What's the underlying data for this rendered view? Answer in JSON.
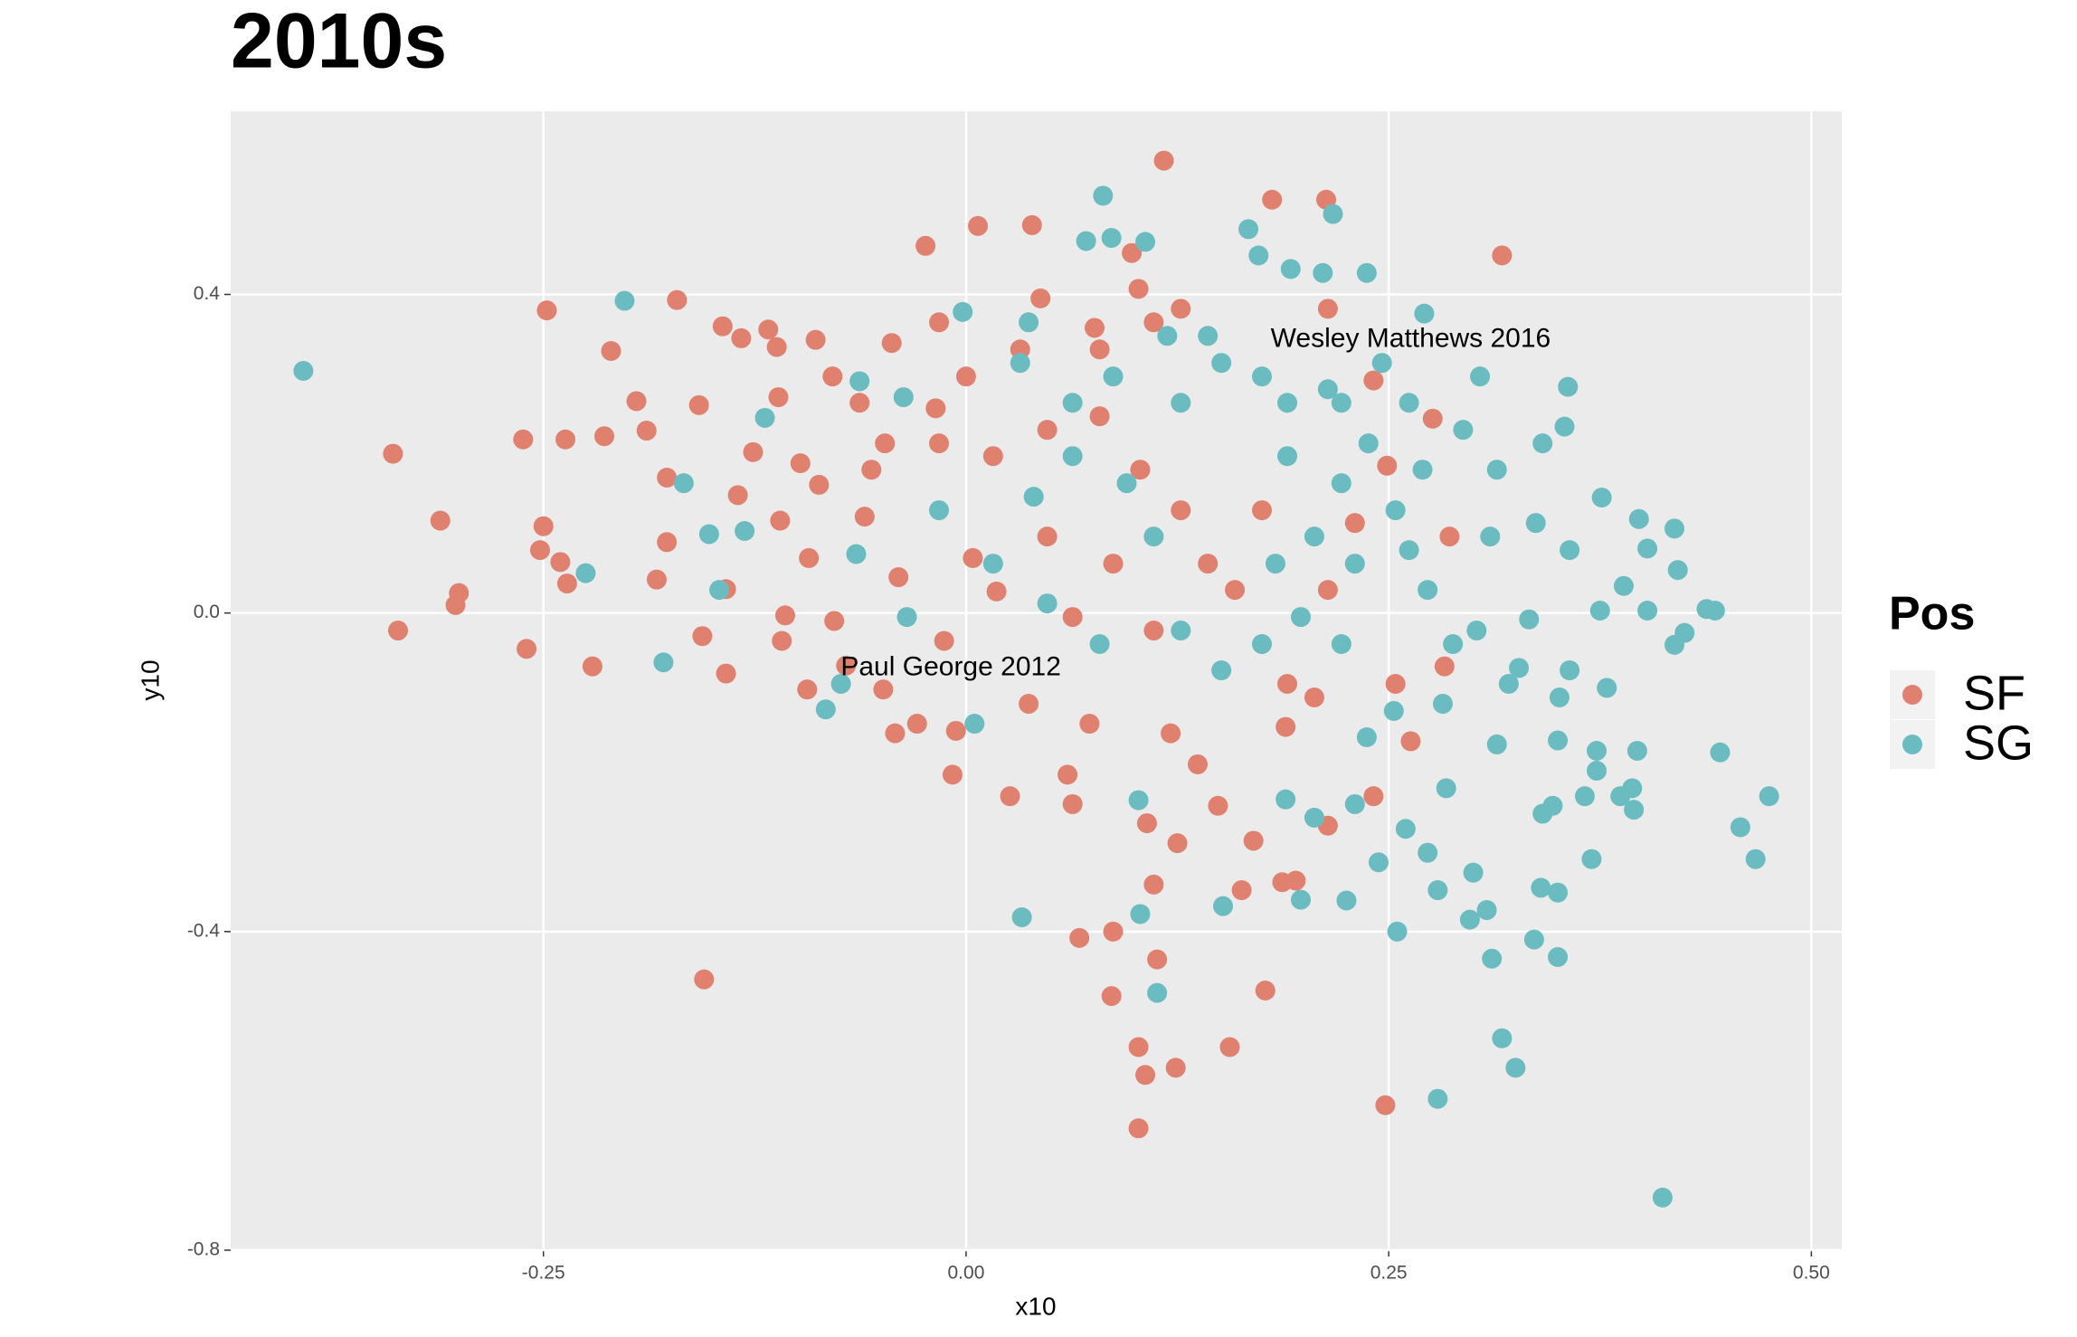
{
  "chart_data": {
    "type": "scatter",
    "title": "2010s",
    "x_label": "x10",
    "y_label": "y10",
    "xlim": [
      -0.435,
      0.518
    ],
    "ylim": [
      -0.8,
      0.63
    ],
    "xticks": [
      -0.25,
      {
        "value": 0,
        "label": "0.00"
      },
      0.25,
      {
        "value": 0.5,
        "label": "0.50"
      }
    ],
    "yticks": [
      -0.8,
      -0.4,
      {
        "value": 0,
        "label": "0.0"
      },
      0.4
    ],
    "grid": true,
    "legend_title": "Pos",
    "legend_position": "right",
    "annotations": [
      {
        "text": "Wesley Matthews 2016",
        "x": 0.263,
        "y": 0.343
      },
      {
        "text": "Paul George 2012",
        "x": -0.009,
        "y": -0.069
      }
    ],
    "series": [
      {
        "name": "SF",
        "color": "#e08170",
        "x": [
          -0.339,
          -0.336,
          -0.311,
          -0.3,
          -0.302,
          -0.262,
          -0.26,
          -0.25,
          -0.248,
          -0.252,
          -0.237,
          -0.236,
          -0.24,
          -0.221,
          -0.21,
          -0.214,
          -0.195,
          -0.189,
          -0.183,
          -0.177,
          -0.171,
          -0.177,
          -0.156,
          -0.155,
          -0.158,
          -0.142,
          -0.142,
          -0.144,
          -0.135,
          -0.133,
          -0.126,
          -0.117,
          -0.112,
          -0.111,
          -0.11,
          -0.107,
          -0.109,
          -0.098,
          -0.094,
          -0.089,
          -0.093,
          -0.087,
          -0.078,
          -0.071,
          -0.06,
          -0.049,
          -0.042,
          -0.044,
          -0.04,
          -0.029,
          -0.024,
          -0.018,
          -0.013,
          -0.008,
          -0.006,
          0.007,
          0.004,
          0.018,
          0.026,
          0.037,
          0.039,
          0.044,
          0.06,
          0.063,
          0.067,
          0.073,
          0.076,
          0.087,
          0.086,
          0.098,
          0.102,
          0.102,
          0.102,
          0.106,
          0.107,
          0.111,
          0.113,
          0.117,
          0.121,
          0.124,
          0.125,
          0.137,
          0.149,
          0.156,
          0.163,
          0.17,
          0.177,
          0.181,
          0.187,
          0.195,
          0.189,
          0.213,
          0.214,
          0.241,
          0.248,
          0.263,
          0.317,
          0.249,
          0.241,
          0.276,
          0.286,
          0.283,
          -0.063,
          -0.048,
          -0.016,
          0.016,
          0.048,
          0.079,
          0.103,
          0.127,
          0.143,
          0.087,
          0.048,
          0.032,
          0.079,
          0.111,
          0.127,
          -0.016,
          -0.079,
          -0.056,
          0.0,
          0.063,
          0.111,
          0.159,
          0.175,
          0.214,
          0.23,
          0.19,
          0.206,
          0.254,
          0.214
        ],
        "values": [
          0.2,
          -0.022,
          0.116,
          0.025,
          0.01,
          0.218,
          -0.045,
          0.109,
          0.38,
          0.079,
          0.218,
          0.037,
          0.064,
          -0.067,
          0.329,
          0.222,
          0.266,
          0.229,
          0.042,
          0.089,
          0.393,
          0.17,
          -0.029,
          -0.46,
          0.261,
          0.03,
          -0.076,
          0.36,
          0.148,
          0.345,
          0.202,
          0.356,
          0.334,
          0.271,
          0.116,
          -0.003,
          -0.035,
          0.188,
          -0.096,
          0.343,
          0.069,
          0.161,
          -0.01,
          -0.066,
          0.121,
          -0.096,
          -0.151,
          0.339,
          0.045,
          -0.139,
          0.461,
          0.257,
          -0.035,
          -0.203,
          -0.148,
          0.486,
          0.069,
          0.027,
          -0.23,
          -0.114,
          0.487,
          0.395,
          -0.203,
          -0.24,
          -0.408,
          -0.139,
          0.358,
          -0.4,
          -0.481,
          0.452,
          0.407,
          -0.545,
          -0.647,
          -0.58,
          -0.264,
          -0.341,
          -0.435,
          0.568,
          -0.151,
          -0.571,
          -0.289,
          -0.19,
          -0.242,
          -0.545,
          -0.348,
          -0.286,
          -0.474,
          0.519,
          -0.338,
          -0.336,
          -0.143,
          0.519,
          -0.267,
          -0.23,
          -0.618,
          -0.161,
          0.449,
          0.185,
          0.292,
          0.244,
          0.096,
          -0.067,
          0.264,
          0.213,
          0.213,
          0.197,
          0.23,
          0.247,
          0.18,
          0.129,
          0.062,
          0.062,
          0.096,
          0.331,
          0.331,
          0.365,
          0.382,
          0.365,
          0.297,
          0.18,
          0.297,
          -0.005,
          -0.022,
          0.029,
          0.129,
          0.029,
          0.113,
          -0.089,
          -0.106,
          -0.089,
          0.382
        ]
      },
      {
        "name": "SG",
        "color": "#6bbcc1",
        "x": [
          -0.392,
          -0.202,
          -0.225,
          -0.179,
          -0.167,
          -0.152,
          -0.146,
          -0.131,
          -0.119,
          -0.083,
          -0.074,
          -0.065,
          -0.063,
          -0.035,
          -0.037,
          -0.002,
          0.005,
          0.033,
          0.037,
          0.081,
          0.071,
          0.086,
          0.106,
          0.102,
          0.103,
          0.113,
          0.152,
          0.167,
          0.173,
          0.192,
          0.217,
          0.211,
          0.237,
          0.271,
          0.304,
          0.356,
          0.354,
          0.376,
          0.398,
          0.419,
          0.403,
          0.421,
          0.389,
          0.375,
          0.403,
          0.438,
          0.443,
          0.425,
          0.419,
          0.379,
          0.35,
          0.373,
          0.397,
          0.446,
          0.373,
          0.394,
          0.395,
          0.387,
          0.366,
          0.475,
          0.458,
          0.467,
          0.37,
          0.341,
          0.347,
          0.34,
          0.35,
          0.336,
          0.35,
          0.311,
          0.308,
          0.3,
          0.298,
          0.317,
          0.325,
          0.279,
          0.412,
          0.279,
          0.273,
          0.255,
          0.244,
          0.26,
          0.284,
          0.225,
          0.198,
          0.189,
          0.206,
          0.23,
          0.237,
          0.253,
          0.282,
          0.314,
          0.321,
          0.351,
          0.357,
          0.327,
          0.302,
          0.333,
          0.288,
          0.273,
          0.31,
          0.337,
          0.357,
          0.314,
          0.341,
          0.294,
          0.262,
          0.246,
          0.214,
          0.19,
          0.175,
          0.151,
          0.127,
          0.19,
          0.222,
          0.254,
          0.206,
          0.23,
          0.262,
          0.183,
          0.198,
          0.222,
          0.175,
          0.151,
          0.127,
          0.111,
          0.095,
          0.063,
          0.04,
          0.016,
          -0.016,
          0.048,
          0.079,
          0.032,
          0.063,
          0.087,
          0.119,
          0.143,
          0.222,
          0.238,
          0.27
        ],
        "values": [
          0.304,
          0.392,
          0.05,
          -0.062,
          0.163,
          0.099,
          0.029,
          0.103,
          0.245,
          -0.121,
          -0.089,
          0.074,
          0.291,
          -0.005,
          0.271,
          0.378,
          -0.139,
          -0.382,
          0.365,
          0.524,
          0.467,
          0.471,
          0.466,
          -0.235,
          -0.378,
          -0.477,
          -0.368,
          0.482,
          0.449,
          0.432,
          0.501,
          0.427,
          0.427,
          0.376,
          0.297,
          0.284,
          0.234,
          0.145,
          0.118,
          0.106,
          0.081,
          0.054,
          0.034,
          0.003,
          0.003,
          0.005,
          0.003,
          -0.025,
          -0.04,
          -0.094,
          -0.16,
          -0.173,
          -0.173,
          -0.175,
          -0.198,
          -0.22,
          -0.247,
          -0.23,
          -0.23,
          -0.23,
          -0.269,
          -0.309,
          -0.309,
          -0.252,
          -0.242,
          -0.345,
          -0.351,
          -0.41,
          -0.432,
          -0.434,
          -0.373,
          -0.326,
          -0.385,
          -0.534,
          -0.571,
          -0.61,
          -0.734,
          -0.348,
          -0.301,
          -0.4,
          -0.313,
          -0.271,
          -0.22,
          -0.361,
          -0.36,
          -0.234,
          -0.257,
          -0.24,
          -0.156,
          -0.123,
          -0.114,
          -0.165,
          -0.089,
          -0.106,
          -0.072,
          -0.069,
          -0.022,
          -0.008,
          -0.039,
          0.029,
          0.096,
          0.113,
          0.079,
          0.18,
          0.213,
          0.23,
          0.264,
          0.314,
          0.281,
          0.264,
          0.297,
          0.314,
          0.264,
          0.197,
          0.163,
          0.129,
          0.096,
          0.062,
          0.079,
          0.062,
          -0.005,
          -0.039,
          -0.039,
          -0.072,
          -0.022,
          0.096,
          0.163,
          0.197,
          0.146,
          0.062,
          0.129,
          0.012,
          -0.039,
          0.314,
          0.264,
          0.297,
          0.348,
          0.348,
          0.264,
          0.213,
          0.18
        ]
      }
    ]
  }
}
